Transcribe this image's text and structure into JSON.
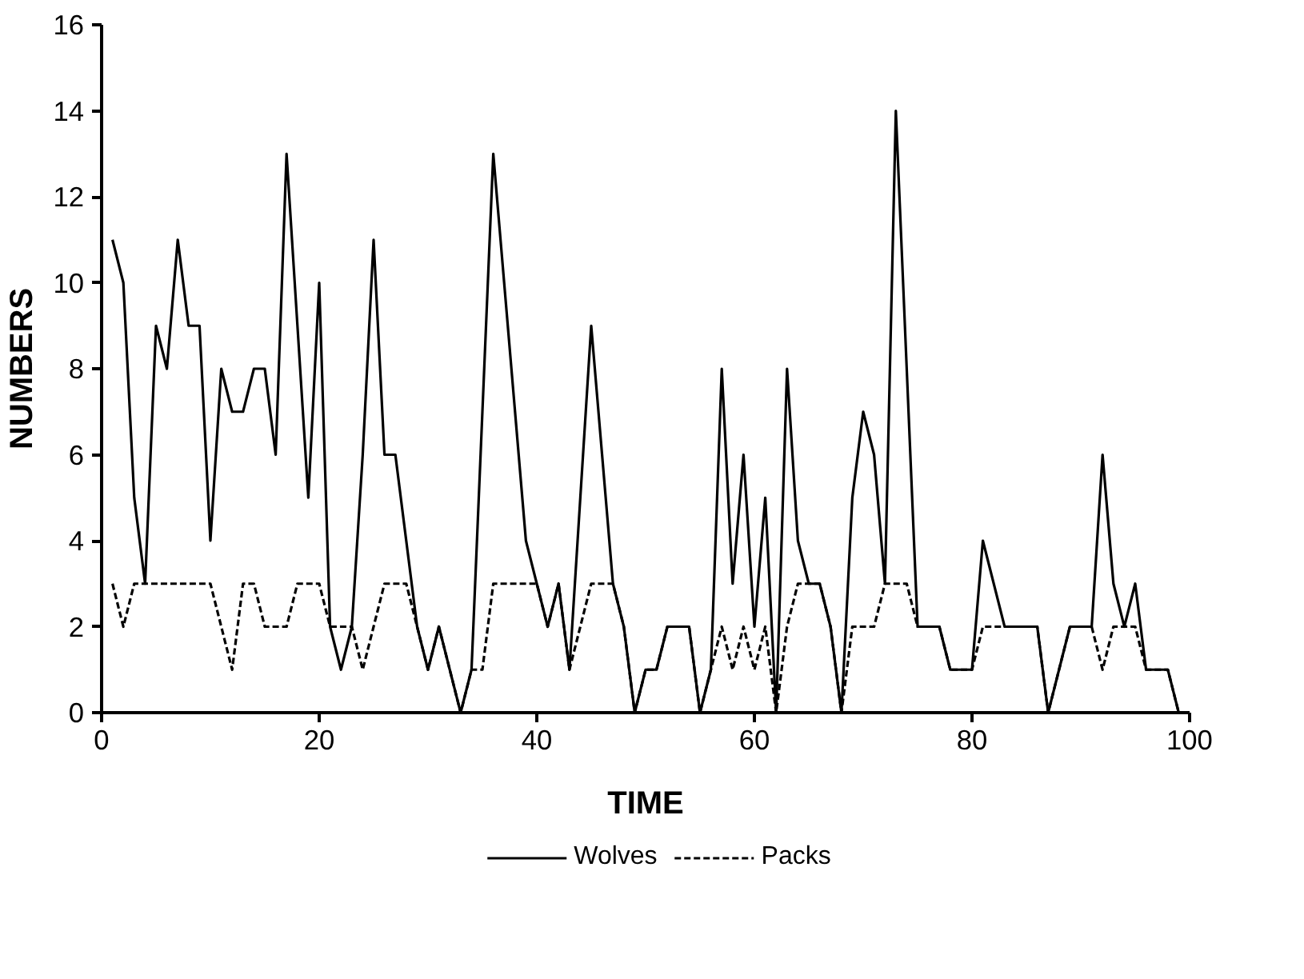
{
  "chart_data": {
    "type": "line",
    "xlabel": "TIME",
    "ylabel": "NUMBERS",
    "x": [
      1,
      2,
      3,
      4,
      5,
      6,
      7,
      8,
      9,
      10,
      11,
      12,
      13,
      14,
      15,
      16,
      17,
      18,
      19,
      20,
      21,
      22,
      23,
      24,
      25,
      26,
      27,
      28,
      29,
      30,
      31,
      32,
      33,
      34,
      35,
      36,
      37,
      38,
      39,
      40,
      41,
      42,
      43,
      44,
      45,
      46,
      47,
      48,
      49,
      50,
      51,
      52,
      53,
      54,
      55,
      56,
      57,
      58,
      59,
      60,
      61,
      62,
      63,
      64,
      65,
      66,
      67,
      68,
      69,
      70,
      71,
      72,
      73,
      74,
      75,
      76,
      77,
      78,
      79,
      80,
      81,
      82,
      83,
      84,
      85,
      86,
      87,
      88,
      89,
      90,
      91,
      92,
      93,
      94,
      95,
      96,
      97,
      98,
      99
    ],
    "series": [
      {
        "name": "Wolves",
        "color": "#000000",
        "line_style": "solid",
        "values": [
          11,
          10,
          5,
          3,
          9,
          8,
          11,
          9,
          9,
          4,
          8,
          7,
          7,
          8,
          8,
          6,
          13,
          9,
          5,
          10,
          2,
          1,
          2,
          6,
          11,
          6,
          6,
          4,
          2,
          1,
          2,
          1,
          0,
          1,
          7,
          13,
          10,
          7,
          4,
          3,
          2,
          3,
          1,
          5,
          9,
          6,
          3,
          2,
          0,
          1,
          1,
          2,
          2,
          2,
          0,
          1,
          8,
          3,
          6,
          2,
          5,
          0,
          8,
          4,
          3,
          3,
          2,
          0,
          5,
          7,
          6,
          3,
          14,
          8,
          2,
          2,
          2,
          1,
          1,
          1,
          4,
          3,
          2,
          2,
          2,
          2,
          0,
          1,
          2,
          2,
          2,
          6,
          3,
          2,
          3,
          1,
          1,
          1,
          0
        ]
      },
      {
        "name": "Packs",
        "color": "#000000",
        "line_style": "dashed",
        "values": [
          3,
          2,
          3,
          3,
          3,
          3,
          3,
          3,
          3,
          3,
          2,
          1,
          3,
          3,
          2,
          2,
          2,
          3,
          3,
          3,
          2,
          2,
          2,
          1,
          2,
          3,
          3,
          3,
          2,
          1,
          2,
          1,
          0,
          1,
          1,
          3,
          3,
          3,
          3,
          3,
          2,
          3,
          1,
          2,
          3,
          3,
          3,
          2,
          0,
          1,
          1,
          2,
          2,
          2,
          0,
          1,
          2,
          1,
          2,
          1,
          2,
          0,
          2,
          3,
          3,
          3,
          2,
          0,
          2,
          2,
          2,
          3,
          3,
          3,
          2,
          2,
          2,
          1,
          1,
          1,
          2,
          2,
          2,
          2,
          2,
          2,
          0,
          1,
          2,
          2,
          2,
          1,
          2,
          2,
          2,
          1,
          1,
          1,
          0
        ]
      }
    ],
    "xlim": [
      0,
      100
    ],
    "xticks": [
      0,
      20,
      40,
      60,
      80,
      100
    ],
    "ylim": [
      0,
      16
    ],
    "yticks": [
      0,
      2,
      4,
      6,
      8,
      10,
      12,
      14,
      16
    ],
    "grid": false,
    "legend": "bottom",
    "marker": "none"
  }
}
